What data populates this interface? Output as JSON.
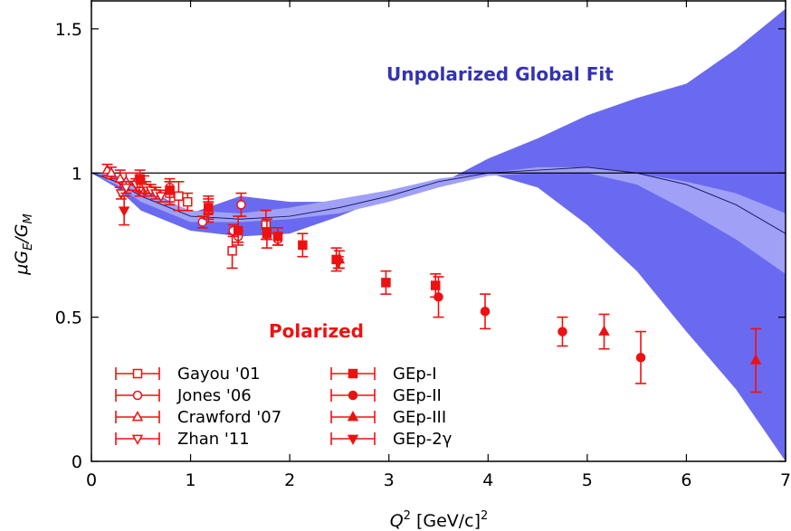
{
  "chart_data": {
    "type": "scatter",
    "xlabel_sym": "Q",
    "xlabel_sup": "2",
    "xlabel_unit": "[GeV/c]",
    "xlabel_unit_sup": "2",
    "ylabel_sym": "μG",
    "ylabel_sub1": "E",
    "ylabel_slash": "/G",
    "ylabel_sub2": "M",
    "xlim": [
      0,
      7
    ],
    "ylim": [
      0,
      1.6
    ],
    "x_ticks": [
      "0",
      "1",
      "2",
      "3",
      "4",
      "5",
      "6",
      "7"
    ],
    "y_ticks": [
      "0",
      "0.5",
      "1",
      "1.5"
    ],
    "reference_line": 1,
    "annotations": {
      "unpolarized": "Unpolarized Global Fit",
      "polarized": "Polarized"
    },
    "colors": {
      "points": "#ee1111",
      "band_outer": "#6a6af0",
      "band_inner": "#a0a0f6",
      "fit_line": "#1a1a66"
    },
    "legend_position": "bottom-left",
    "legend": [
      "Gayou '01",
      "Jones '06",
      "Crawford '07",
      "Zhan '11",
      "GEp-I",
      "GEp-II",
      "GEp-III",
      "GEp-2γ"
    ],
    "series": [
      {
        "name": "Gayou '01",
        "marker": "open-square",
        "points": [
          [
            0.49,
            0.95,
            0.03
          ],
          [
            0.79,
            0.93,
            0.04
          ],
          [
            0.88,
            0.92,
            0.05
          ],
          [
            0.97,
            0.9,
            0.03
          ],
          [
            1.18,
            0.87,
            0.04
          ],
          [
            1.42,
            0.73,
            0.06
          ],
          [
            1.76,
            0.82,
            0.05
          ]
        ]
      },
      {
        "name": "Jones '06",
        "marker": "open-circle",
        "points": [
          [
            0.49,
            0.97,
            0.02
          ],
          [
            0.79,
            0.95,
            0.02
          ],
          [
            1.18,
            0.88,
            0.02
          ],
          [
            1.48,
            0.78,
            0.02
          ],
          [
            1.77,
            0.79,
            0.02
          ],
          [
            1.88,
            0.77,
            0.02
          ],
          [
            0.54,
            0.94,
            0.02
          ],
          [
            1.12,
            0.83,
            0.02
          ],
          [
            1.43,
            0.8,
            0.02
          ],
          [
            1.51,
            0.89,
            0.04
          ]
        ]
      },
      {
        "name": "Crawford '07",
        "marker": "open-triangle-up",
        "points": [
          [
            0.16,
            1.01,
            0.02
          ],
          [
            0.2,
            1.0,
            0.02
          ],
          [
            0.29,
            0.98,
            0.03
          ],
          [
            0.35,
            0.97,
            0.03
          ],
          [
            0.45,
            0.97,
            0.03
          ],
          [
            0.53,
            0.96,
            0.03
          ]
        ]
      },
      {
        "name": "Zhan '11",
        "marker": "open-triangle-down",
        "points": [
          [
            0.3,
            0.93,
            0.02
          ],
          [
            0.35,
            0.95,
            0.02
          ],
          [
            0.45,
            0.96,
            0.02
          ],
          [
            0.5,
            0.95,
            0.02
          ],
          [
            0.55,
            0.95,
            0.02
          ],
          [
            0.6,
            0.94,
            0.02
          ],
          [
            0.65,
            0.93,
            0.02
          ],
          [
            0.7,
            0.92,
            0.02
          ]
        ]
      },
      {
        "name": "GEp-I",
        "marker": "filled-square",
        "points": [
          [
            0.49,
            0.98,
            0.03
          ],
          [
            0.79,
            0.94,
            0.04
          ],
          [
            1.18,
            0.88,
            0.04
          ],
          [
            1.48,
            0.8,
            0.05
          ],
          [
            1.77,
            0.79,
            0.05
          ],
          [
            1.88,
            0.78,
            0.03
          ],
          [
            2.13,
            0.75,
            0.04
          ],
          [
            2.47,
            0.7,
            0.04
          ],
          [
            2.97,
            0.62,
            0.04
          ],
          [
            3.47,
            0.61,
            0.04
          ]
        ]
      },
      {
        "name": "GEp-II",
        "marker": "filled-circle",
        "points": [
          [
            3.5,
            0.57,
            0.07
          ],
          [
            3.97,
            0.52,
            0.06
          ],
          [
            4.75,
            0.45,
            0.05
          ],
          [
            5.54,
            0.36,
            0.09
          ]
        ]
      },
      {
        "name": "GEp-III",
        "marker": "filled-triangle-up",
        "points": [
          [
            2.5,
            0.7,
            0.03
          ],
          [
            5.17,
            0.45,
            0.06
          ],
          [
            6.7,
            0.35,
            0.11
          ]
        ]
      },
      {
        "name": "GEp-2γ",
        "marker": "filled-triangle-down",
        "points": [
          [
            0.33,
            0.87,
            0.05
          ],
          [
            2.49,
            0.69,
            0.02
          ]
        ]
      }
    ],
    "global_fit": {
      "x": [
        0,
        0.25,
        0.5,
        1,
        1.5,
        2,
        2.5,
        3,
        3.5,
        4,
        4.5,
        5,
        5.5,
        6,
        6.5,
        7
      ],
      "outer_upper": [
        1.0,
        0.99,
        0.96,
        0.86,
        0.92,
        0.9,
        0.9,
        0.92,
        0.96,
        1.05,
        1.12,
        1.2,
        1.26,
        1.31,
        1.43,
        1.57
      ],
      "inner_upper": [
        1.0,
        0.98,
        0.94,
        0.87,
        0.86,
        0.88,
        0.91,
        0.94,
        0.98,
        1.0,
        1.02,
        1.02,
        1.0,
        0.97,
        0.93,
        0.86
      ],
      "center": [
        1.0,
        0.97,
        0.92,
        0.85,
        0.84,
        0.85,
        0.88,
        0.92,
        0.97,
        1.0,
        1.01,
        1.02,
        1.0,
        0.96,
        0.89,
        0.79
      ],
      "inner_lower": [
        1.0,
        0.96,
        0.9,
        0.83,
        0.83,
        0.84,
        0.86,
        0.9,
        0.95,
        0.99,
        1.0,
        1.0,
        0.96,
        0.87,
        0.77,
        0.65
      ],
      "outer_lower": [
        1.0,
        0.95,
        0.87,
        0.8,
        0.78,
        0.79,
        0.85,
        0.92,
        0.98,
        1.0,
        0.95,
        0.82,
        0.66,
        0.45,
        0.25,
        0.0
      ]
    }
  }
}
